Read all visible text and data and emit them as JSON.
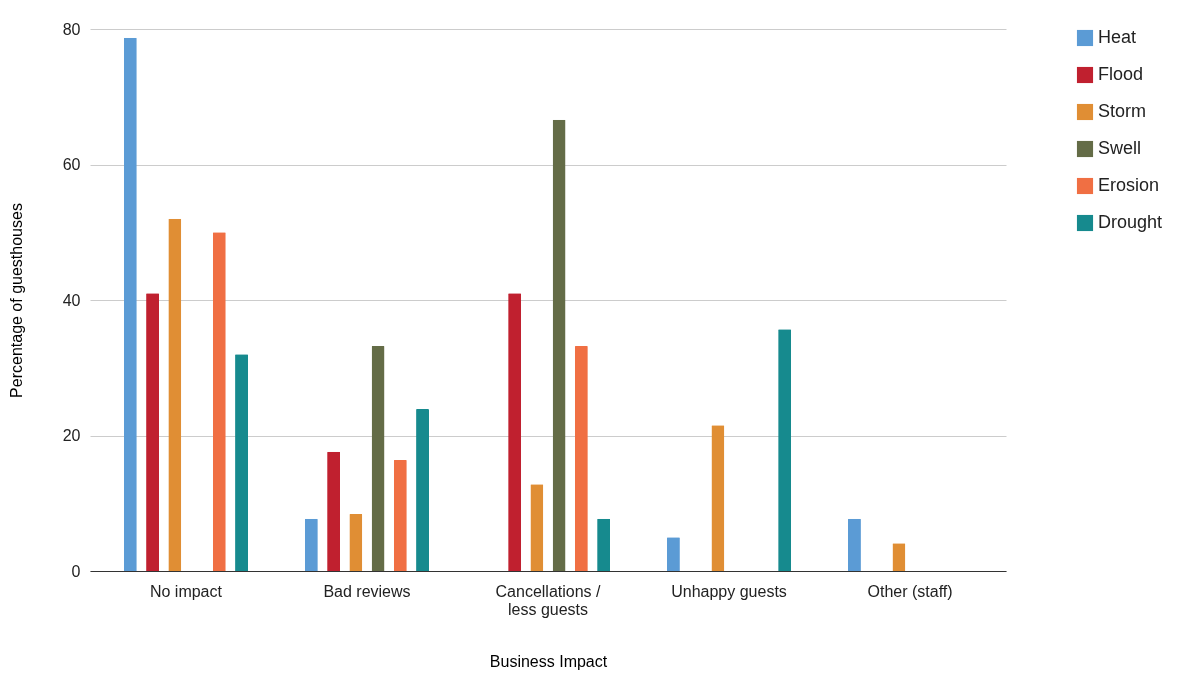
{
  "chart_data": {
    "type": "bar",
    "xlabel": "Business Impact",
    "ylabel": "Percentage of guesthouses",
    "categories": [
      "No impact",
      "Bad reviews",
      "Cancellations / less guests",
      "Unhappy guests",
      "Other (staff)"
    ],
    "series": [
      {
        "name": "Heat",
        "color": "#5b9bd5",
        "values": [
          78.7,
          7.7,
          null,
          5,
          7.7
        ]
      },
      {
        "name": "Flood",
        "color": "#c0202f",
        "values": [
          41,
          17.6,
          41,
          null,
          null
        ]
      },
      {
        "name": "Storm",
        "color": "#e08e34",
        "values": [
          52,
          8.4,
          12.8,
          21.5,
          4.1
        ]
      },
      {
        "name": "Swell",
        "color": "#646c47",
        "values": [
          null,
          33.2,
          66.6,
          null,
          null
        ]
      },
      {
        "name": "Erosion",
        "color": "#f06f43",
        "values": [
          50,
          16.4,
          33.2,
          null,
          null
        ]
      },
      {
        "name": "Drought",
        "color": "#168a8e",
        "values": [
          32,
          23.9,
          7.7,
          35.7,
          null
        ]
      }
    ],
    "ylim": [
      0,
      80
    ],
    "yticks": [
      0,
      20,
      40,
      60,
      80
    ],
    "grid": "y",
    "legend": "top right"
  }
}
